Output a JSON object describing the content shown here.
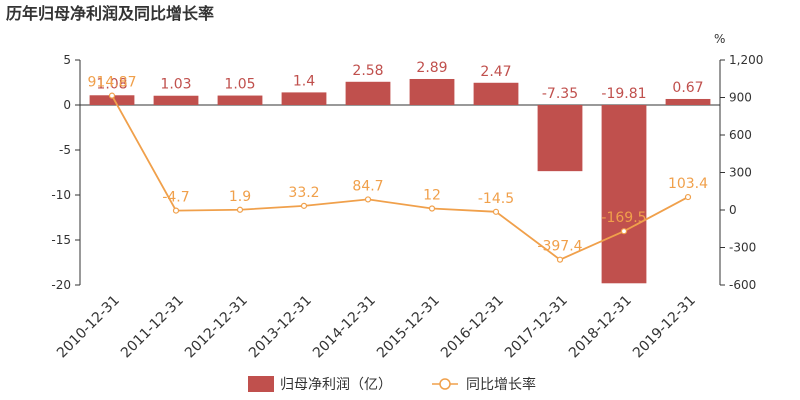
{
  "chart_data": {
    "type": "bar",
    "title": "历年归母净利润及同比增长率",
    "categories": [
      "2010-12-31",
      "2011-12-31",
      "2012-12-31",
      "2013-12-31",
      "2014-12-31",
      "2015-12-31",
      "2016-12-31",
      "2017-12-31",
      "2018-12-31",
      "2019-12-31"
    ],
    "series": [
      {
        "name": "归母净利润（亿）",
        "type": "bar",
        "axis": "left",
        "color": "#c0504d",
        "values": [
          1.08,
          1.03,
          1.05,
          1.4,
          2.58,
          2.89,
          2.47,
          -7.35,
          -19.81,
          0.67
        ],
        "labels": [
          "1.08",
          "1.03",
          "1.05",
          "1.4",
          "2.58",
          "2.89",
          "2.47",
          "-7.35",
          "-19.81",
          "0.67"
        ]
      },
      {
        "name": "同比增长率",
        "type": "line",
        "axis": "right",
        "color": "#f0a04b",
        "values": [
          914.87,
          -4.7,
          1.9,
          33.2,
          84.7,
          12,
          -14.5,
          -397.4,
          -169.5,
          103.4
        ],
        "labels": [
          "914.87",
          "-4.7",
          "1.9",
          "33.2",
          "84.7",
          "12",
          "-14.5",
          "-397.4",
          "-169.5",
          "103.4"
        ]
      }
    ],
    "y_left": {
      "min": -20,
      "max": 5,
      "ticks": [
        5,
        0,
        -5,
        -10,
        -15,
        -20
      ],
      "tick_labels": [
        "5",
        "0",
        "-5",
        "-10",
        "-15",
        "-20"
      ]
    },
    "y_right": {
      "min": -600,
      "max": 1200,
      "unit": "%",
      "ticks": [
        1200,
        900,
        600,
        300,
        0,
        -300,
        -600
      ],
      "tick_labels": [
        "1,200",
        "900",
        "600",
        "300",
        "0",
        "-300",
        "-600"
      ]
    },
    "grid": false,
    "legend_position": "bottom"
  }
}
